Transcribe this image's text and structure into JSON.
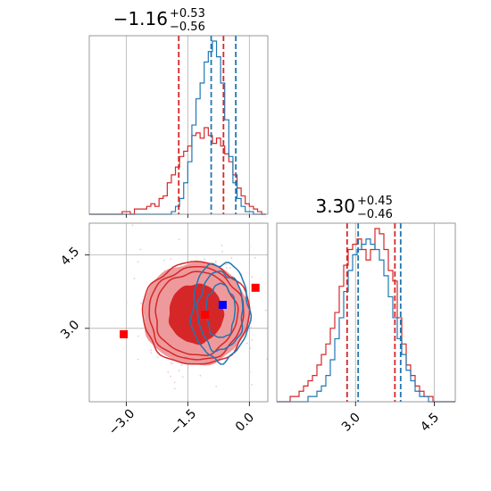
{
  "colors": {
    "red": "#d62728",
    "blue": "#1f77b4",
    "red_fill_dark": "#d62728",
    "red_fill_light": "#ee9a9c",
    "grid": "#b0b0b0",
    "marker_red": "#ff0000",
    "marker_blue": "#0000ff"
  },
  "chart_data": [
    {
      "type": "histogram",
      "panel": "top-left",
      "title": {
        "value": "−1.16",
        "sup": "+0.53",
        "sub": "−0.56"
      },
      "xlim": [
        -3.9,
        0.45
      ],
      "ticks": [
        -3.0,
        -1.5,
        0.0
      ],
      "grid": true,
      "red_quantiles": [
        -1.72,
        -0.63
      ],
      "blue_quantiles": [
        -0.93,
        -0.33
      ],
      "series": [
        {
          "color_key": "red",
          "bin_start": -3.9,
          "bin_width": 0.1,
          "counts": [
            0,
            0,
            0,
            0,
            0,
            0,
            0,
            0,
            1,
            1,
            0,
            2,
            2,
            2,
            3,
            4,
            3,
            6,
            7,
            12,
            15,
            18,
            22,
            24,
            26,
            30,
            31,
            29,
            33,
            30,
            27,
            29,
            26,
            23,
            20,
            15,
            10,
            7,
            4,
            3,
            2,
            1,
            0
          ]
        },
        {
          "color_key": "blue",
          "bin_start": -3.9,
          "bin_width": 0.1,
          "counts": [
            0,
            0,
            0,
            0,
            0,
            0,
            0,
            0,
            0,
            0,
            0,
            0,
            0,
            0,
            0,
            0,
            0,
            0,
            0,
            0,
            1,
            3,
            6,
            12,
            20,
            34,
            44,
            50,
            58,
            62,
            66,
            60,
            50,
            36,
            22,
            12,
            6,
            3,
            1,
            1,
            0,
            0,
            0
          ]
        }
      ]
    },
    {
      "type": "histogram",
      "panel": "bottom-right",
      "title": {
        "value": "3.30",
        "sup": "+0.45",
        "sub": "−0.46"
      },
      "xlim": [
        1.5,
        4.9
      ],
      "ticks": [
        3.0,
        4.5
      ],
      "grid": true,
      "red_quantiles": [
        2.84,
        3.75
      ],
      "blue_quantiles": [
        3.05,
        3.86
      ],
      "series": [
        {
          "color_key": "red",
          "bin_start": 1.5,
          "bin_width": 0.085,
          "counts": [
            0,
            0,
            0,
            1,
            1,
            2,
            3,
            4,
            5,
            7,
            9,
            11,
            14,
            17,
            22,
            26,
            29,
            30,
            31,
            29,
            27,
            29,
            33,
            32,
            29,
            25,
            23,
            16,
            11,
            7,
            5,
            3,
            2,
            1,
            1,
            0,
            0,
            0,
            0,
            0
          ]
        },
        {
          "color_key": "blue",
          "bin_start": 1.5,
          "bin_width": 0.085,
          "counts": [
            0,
            0,
            0,
            0,
            0,
            0,
            0,
            1,
            1,
            2,
            3,
            5,
            8,
            12,
            16,
            21,
            25,
            28,
            29,
            30,
            31,
            30,
            29,
            27,
            24,
            20,
            16,
            12,
            9,
            6,
            4,
            2,
            1,
            1,
            0,
            0,
            0,
            0,
            0,
            0
          ]
        }
      ]
    },
    {
      "type": "scatter",
      "panel": "bottom-left",
      "xlim": [
        -3.9,
        0.45
      ],
      "ylim": [
        1.5,
        5.15
      ],
      "xticks": [
        -3.0,
        -1.5,
        0.0
      ],
      "yticks": [
        3.0,
        4.5
      ],
      "grid": true,
      "contours": {
        "red_center": [
          -1.3,
          3.3
        ],
        "red_radii": [
          [
            0.65,
            0.6
          ],
          [
            1.0,
            0.85
          ],
          [
            1.15,
            0.95
          ],
          [
            1.3,
            1.05
          ]
        ],
        "blue_center": [
          -0.7,
          3.35
        ],
        "blue_radii": [
          [
            0.35,
            0.55
          ],
          [
            0.55,
            0.8
          ],
          [
            0.7,
            1.0
          ]
        ]
      },
      "markers": [
        {
          "x": -3.06,
          "y": 2.88,
          "color_key": "marker_red"
        },
        {
          "x": -1.08,
          "y": 3.28,
          "color_key": "marker_red"
        },
        {
          "x": 0.15,
          "y": 3.83,
          "color_key": "marker_red"
        },
        {
          "x": -0.65,
          "y": 3.48,
          "color_key": "marker_blue"
        }
      ]
    }
  ]
}
